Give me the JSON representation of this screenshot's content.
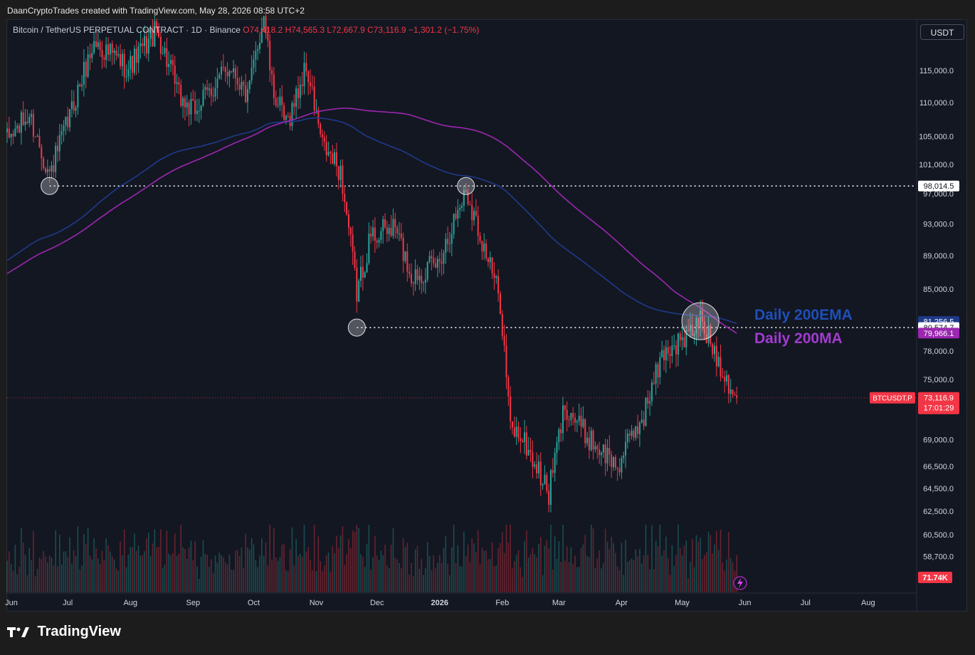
{
  "header": {
    "attribution": "DaanCryptoTrades created with TradingView.com, May 28, 2026 08:58 UTC+2"
  },
  "legend": {
    "symbol": "Bitcoin / TetherUS PERPETUAL CONTRACT · 1D · Binance",
    "open": "O74,418.2",
    "high": "H74,565.3",
    "low": "L72,667.9",
    "close": "C73,116.9",
    "change": "−1,301.2 (−1.75%)"
  },
  "currency_button": "USDT",
  "footer": {
    "brand": "TradingView"
  },
  "colors": {
    "up": "#26a69a",
    "down": "#f23645",
    "ema": "#1f3a8a",
    "ma": "#9c27b0",
    "background": "#131722"
  },
  "chart_data": {
    "type": "candlestick",
    "x_ticks": [
      "Jun",
      "Jul",
      "Aug",
      "Sep",
      "Oct",
      "Nov",
      "Dec",
      "2026",
      "Feb",
      "Mar",
      "Apr",
      "May",
      "Jun",
      "Jul",
      "Aug"
    ],
    "y_ticks": [
      "115,000.0",
      "110,000.0",
      "105,000.0",
      "101,000.0",
      "97,000.0",
      "93,000.0",
      "89,000.0",
      "85,000.0",
      "78,000.0",
      "75,000.0",
      "69,000.0",
      "66,500.0",
      "64,500.0",
      "62,500.0",
      "60,500.0",
      "58,700.0"
    ],
    "ohlc_anchors": [
      {
        "date": "2025-06-01",
        "close": 104500
      },
      {
        "date": "2025-06-12",
        "close": 108000
      },
      {
        "date": "2025-06-22",
        "close": 99500
      },
      {
        "date": "2025-07-01",
        "close": 107000
      },
      {
        "date": "2025-07-14",
        "close": 119500
      },
      {
        "date": "2025-07-31",
        "close": 115500
      },
      {
        "date": "2025-08-14",
        "close": 121500
      },
      {
        "date": "2025-08-25",
        "close": 111000
      },
      {
        "date": "2025-09-01",
        "close": 108500
      },
      {
        "date": "2025-09-20",
        "close": 116000
      },
      {
        "date": "2025-09-28",
        "close": 110500
      },
      {
        "date": "2025-10-06",
        "close": 124500
      },
      {
        "date": "2025-10-10",
        "close": 112500
      },
      {
        "date": "2025-10-17",
        "close": 106500
      },
      {
        "date": "2025-10-27",
        "close": 115500
      },
      {
        "date": "2025-11-04",
        "close": 103500
      },
      {
        "date": "2025-11-13",
        "close": 100000
      },
      {
        "date": "2025-11-21",
        "close": 84500
      },
      {
        "date": "2025-11-28",
        "close": 91500
      },
      {
        "date": "2025-12-10",
        "close": 92500
      },
      {
        "date": "2025-12-18",
        "close": 86500
      },
      {
        "date": "2025-12-31",
        "close": 88000
      },
      {
        "date": "2026-01-14",
        "close": 97500
      },
      {
        "date": "2026-01-25",
        "close": 88500
      },
      {
        "date": "2026-01-31",
        "close": 83500
      },
      {
        "date": "2026-02-05",
        "close": 70000
      },
      {
        "date": "2026-02-10",
        "close": 69500
      },
      {
        "date": "2026-02-24",
        "close": 64000
      },
      {
        "date": "2026-03-04",
        "close": 72500
      },
      {
        "date": "2026-03-14",
        "close": 69500
      },
      {
        "date": "2026-03-30",
        "close": 66500
      },
      {
        "date": "2026-04-12",
        "close": 71500
      },
      {
        "date": "2026-04-22",
        "close": 78000
      },
      {
        "date": "2026-05-04",
        "close": 79500
      },
      {
        "date": "2026-05-10",
        "close": 81500
      },
      {
        "date": "2026-05-19",
        "close": 77000
      },
      {
        "date": "2026-05-28",
        "close": 73116.9
      }
    ],
    "horizontal_levels": [
      {
        "value": 98014.5,
        "label": "98,014.5",
        "style": "dotted"
      },
      {
        "value": 80574.7,
        "label": "80,574.7",
        "style": "dotted"
      }
    ],
    "series": [
      {
        "name": "Daily 200EMA",
        "type": "line",
        "last_value": 81256.5,
        "label": "81,256.5"
      },
      {
        "name": "Daily 200MA",
        "type": "line",
        "last_value": 79966.1,
        "label": "79,966.1"
      }
    ],
    "last_price": {
      "symbol": "BTCUSDT.P",
      "value": 73116.9,
      "label": "73,116.9",
      "countdown": "17:01:29"
    },
    "volume_last": "71.74K",
    "annotations": [
      {
        "type": "circle",
        "date": "2025-06-22",
        "value": 98014.5
      },
      {
        "type": "circle",
        "date": "2026-01-14",
        "value": 98014.5
      },
      {
        "type": "circle",
        "date": "2025-11-21",
        "value": 80574.7
      },
      {
        "type": "circle",
        "date": "2026-05-10",
        "value": 80574.7,
        "size": "large"
      }
    ]
  }
}
